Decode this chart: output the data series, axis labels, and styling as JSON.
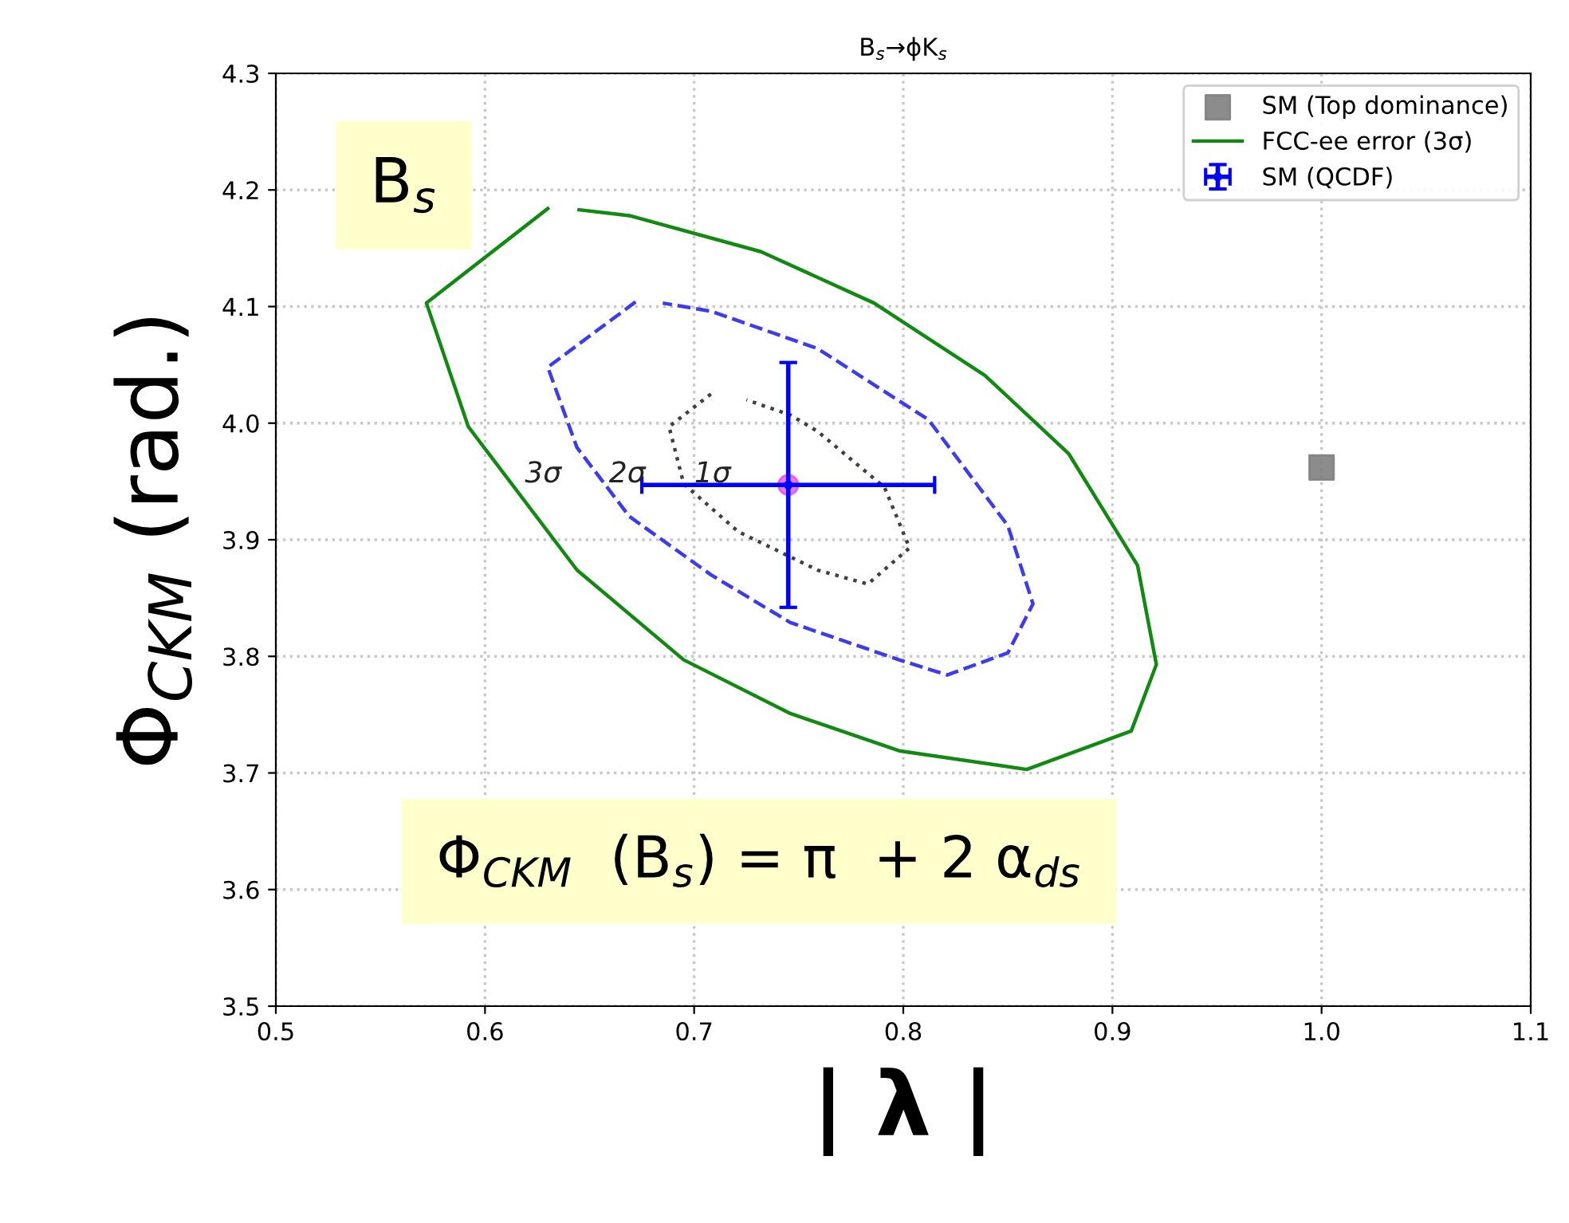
{
  "chart_data": {
    "type": "scatter",
    "title": "B$_{s}$→ϕK$_{s}$",
    "xlabel": "| λ |",
    "ylabel": "Φ$_{CKM}$ (rad.)",
    "xlim": [
      0.5,
      1.1
    ],
    "xticks": [
      0.5,
      0.6,
      0.7,
      0.8,
      0.9,
      {
        "value": 1,
        "label": "1.0"
      },
      1.1
    ],
    "ylim": [
      3.5,
      4.3
    ],
    "yticks": [
      3.5,
      3.6,
      3.7,
      3.8,
      3.9,
      {
        "value": 4,
        "label": "4.0"
      },
      4.1,
      4.2,
      4.3
    ],
    "grid": true,
    "legend": "top right",
    "series": [
      {
        "name": "SM (Top dominance)",
        "color": "#808080",
        "marker": "square",
        "x": [
          1.0
        ],
        "values": [
          3.962
        ]
      },
      {
        "name": "FCC-ee error (3σ)",
        "type": "line",
        "color": "#108a10",
        "line_style": "solid",
        "marker": "none",
        "x": [
          0.63,
          0.572,
          0.592,
          0.644,
          0.695,
          0.746,
          0.798,
          0.859,
          0.909,
          0.921,
          0.912,
          0.879,
          0.839,
          0.786,
          0.732,
          0.669,
          0.645
        ],
        "values": [
          4.184,
          4.103,
          3.997,
          3.874,
          3.797,
          3.751,
          3.719,
          3.703,
          3.736,
          3.793,
          3.878,
          3.974,
          4.041,
          4.103,
          4.147,
          4.178,
          4.183
        ]
      },
      {
        "type": "line",
        "color": "#3b3bf0",
        "line_style": "dashed",
        "marker": "none",
        "x": [
          0.672,
          0.63,
          0.644,
          0.669,
          0.708,
          0.746,
          0.798,
          0.821,
          0.85,
          0.862,
          0.85,
          0.812,
          0.759,
          0.708,
          0.685
        ],
        "values": [
          4.104,
          4.048,
          3.979,
          3.92,
          3.87,
          3.829,
          3.797,
          3.784,
          3.803,
          3.845,
          3.912,
          4.003,
          4.064,
          4.096,
          4.103
        ]
      },
      {
        "type": "line",
        "color": "#404040",
        "line_style": "dotted",
        "marker": "none",
        "x": [
          0.708,
          0.688,
          0.695,
          0.721,
          0.759,
          0.783,
          0.803,
          0.791,
          0.759,
          0.746,
          0.725
        ],
        "values": [
          4.025,
          3.997,
          3.948,
          3.907,
          3.874,
          3.862,
          3.893,
          3.945,
          3.993,
          4.007,
          4.02
        ]
      },
      {
        "type": "scatter",
        "color": "#e040e0",
        "marker": "circle",
        "x": [
          0.745
        ],
        "values": [
          3.947
        ]
      },
      {
        "name": "SM (QCDF)",
        "color": "#0000ff",
        "marker": "circle",
        "x": [
          0.745
        ],
        "values": [
          3.947
        ],
        "errors": [
          0.105
        ],
        "xerrors": [
          0.07
        ]
      }
    ],
    "annotations": [
      "3σ",
      "2σ",
      "1σ",
      "B$_{s}$",
      "Φ$_{CKM}$  (B$_{s}$) = π  + 2 α$_{ds}$"
    ]
  }
}
